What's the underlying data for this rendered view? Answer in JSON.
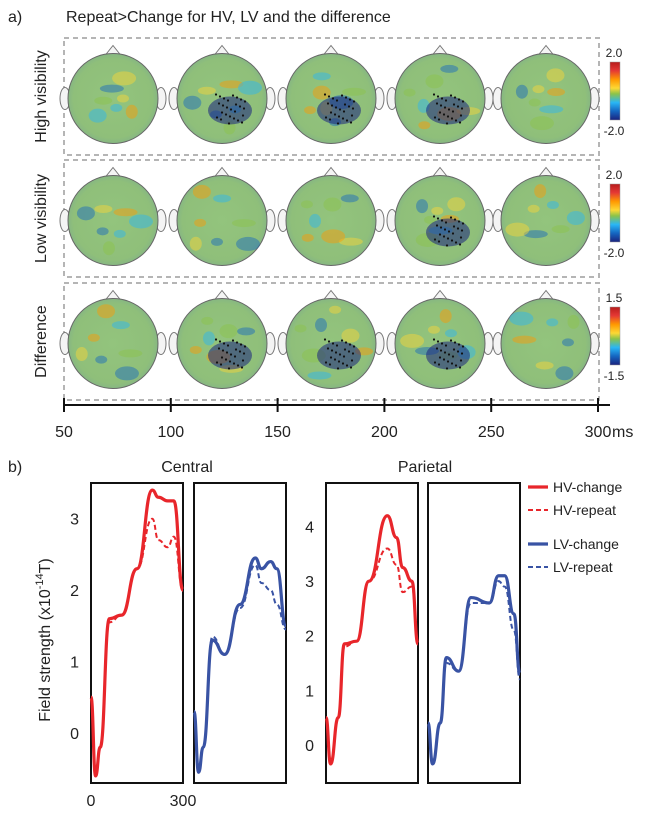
{
  "panel_a": {
    "label": "a)",
    "title": "Repeat>Change for HV, LV and the difference",
    "rows": [
      {
        "label": "High visibility",
        "scale_max": "2.0",
        "scale_min": "-2.0"
      },
      {
        "label": "Low visibility",
        "scale_max": "2.0",
        "scale_min": "-2.0"
      },
      {
        "label": "Difference",
        "scale_max": "1.5",
        "scale_min": "-1.5"
      }
    ],
    "time_axis": {
      "ticks": [
        "50",
        "100",
        "150",
        "200",
        "250",
        "300"
      ],
      "unit": "ms"
    },
    "colormap": [
      "#1a237e",
      "#1565c0",
      "#29b6f6",
      "#8bc34a",
      "#fdd835",
      "#ff9800",
      "#e53935",
      "#b71c1c"
    ],
    "significant_maps": [
      [
        false,
        true,
        true,
        true,
        false
      ],
      [
        false,
        false,
        false,
        true,
        false
      ],
      [
        false,
        true,
        true,
        true,
        false
      ]
    ]
  },
  "panel_b": {
    "label": "b)",
    "group_titles": [
      "Central",
      "Parietal"
    ],
    "ylabel_main": "Field strength (x10",
    "ylabel_exp": "-14",
    "ylabel_unit": "T)",
    "xticks": [
      "0",
      "300"
    ],
    "legend": [
      {
        "name": "HV-change",
        "color": "#e8262b",
        "dash": false
      },
      {
        "name": "HV-repeat",
        "color": "#e8262b",
        "dash": true
      },
      {
        "name": "LV-change",
        "color": "#3953a4",
        "dash": false
      },
      {
        "name": "LV-repeat",
        "color": "#3953a4",
        "dash": true
      }
    ],
    "colors": {
      "hv": "#e8262b",
      "lv": "#3953a4"
    }
  },
  "chart_data": [
    {
      "type": "line",
      "title": "Central",
      "ylabel": "Field strength (x10^-14 T)",
      "x": [
        0,
        15,
        30,
        60,
        100,
        150,
        200,
        220,
        250,
        270,
        300
      ],
      "xlim": [
        0,
        300
      ],
      "ylim": [
        -0.7,
        3.5
      ],
      "yticks": [
        0,
        1,
        2,
        3
      ],
      "series": [
        {
          "name": "HV-change",
          "values": [
            0.5,
            -0.6,
            -0.2,
            1.6,
            1.65,
            2.3,
            3.4,
            3.3,
            3.25,
            3.25,
            2.0
          ]
        },
        {
          "name": "HV-repeat",
          "values": [
            0.5,
            -0.6,
            -0.2,
            1.55,
            1.65,
            2.3,
            3.0,
            2.7,
            2.6,
            2.75,
            2.0
          ]
        },
        {
          "name": "LV-change",
          "values": [
            0.3,
            -0.55,
            -0.2,
            1.3,
            1.1,
            1.8,
            2.45,
            2.3,
            2.4,
            2.3,
            1.5
          ]
        },
        {
          "name": "LV-repeat",
          "values": [
            0.3,
            -0.55,
            -0.2,
            1.35,
            1.1,
            1.75,
            2.35,
            2.1,
            2.0,
            1.8,
            1.45
          ]
        }
      ]
    },
    {
      "type": "line",
      "title": "Parietal",
      "ylabel": "Field strength (x10^-14 T)",
      "x": [
        0,
        15,
        40,
        60,
        100,
        140,
        200,
        230,
        250,
        280,
        300
      ],
      "xlim": [
        0,
        300
      ],
      "ylim": [
        -0.7,
        4.8
      ],
      "yticks": [
        0,
        1,
        2,
        3,
        4
      ],
      "series": [
        {
          "name": "HV-change",
          "values": [
            0.5,
            -0.35,
            0.5,
            1.85,
            1.9,
            3.0,
            4.2,
            3.8,
            3.25,
            3.0,
            1.85
          ]
        },
        {
          "name": "HV-repeat",
          "values": [
            0.5,
            -0.35,
            0.5,
            1.8,
            1.9,
            3.0,
            3.6,
            3.3,
            2.8,
            2.9,
            1.9
          ]
        },
        {
          "name": "LV-change",
          "values": [
            0.4,
            -0.35,
            0.4,
            1.6,
            1.35,
            2.7,
            2.6,
            3.1,
            3.1,
            2.4,
            1.3
          ]
        },
        {
          "name": "LV-repeat",
          "values": [
            0.4,
            -0.35,
            0.4,
            1.5,
            1.35,
            2.6,
            2.6,
            3.0,
            2.9,
            2.1,
            1.2
          ]
        }
      ]
    }
  ]
}
